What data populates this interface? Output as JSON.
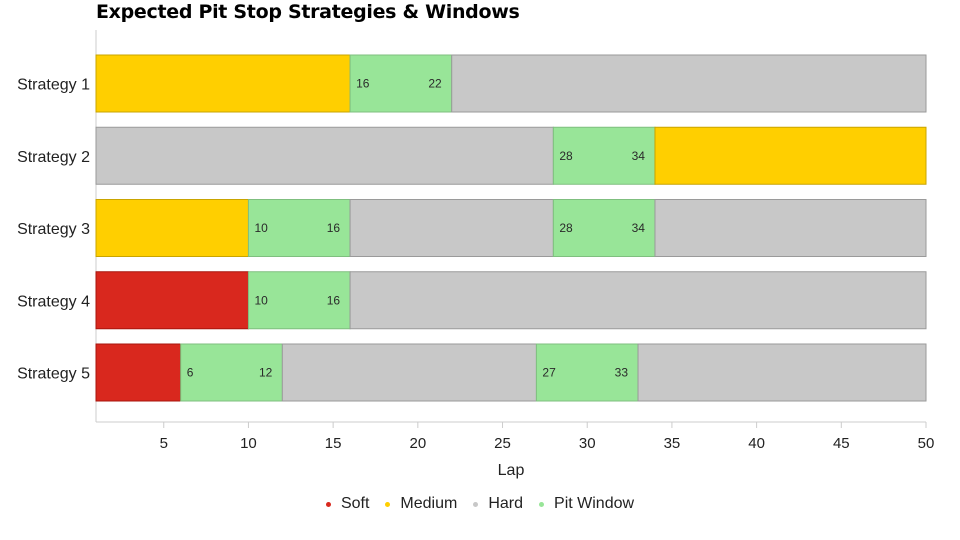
{
  "chart_data": {
    "type": "bar",
    "orientation": "horizontal",
    "stacked": true,
    "title": "Expected Pit Stop Strategies & Windows",
    "xlabel": "Lap",
    "ylabel": "",
    "xlim": [
      1,
      50
    ],
    "xticks": [
      5,
      10,
      15,
      20,
      25,
      30,
      35,
      40,
      45,
      50
    ],
    "grid": false,
    "legend_position": "bottom",
    "categories": [
      "Strategy 1",
      "Strategy 2",
      "Strategy 3",
      "Strategy 4",
      "Strategy 5"
    ],
    "compounds": {
      "soft": {
        "name": "Soft",
        "color": "#d9281e"
      },
      "medium": {
        "name": "Medium",
        "color": "#ffcf00"
      },
      "hard": {
        "name": "Hard",
        "color": "#c8c8c8"
      },
      "window": {
        "name": "Pit Window",
        "color": "#98e598"
      }
    },
    "strategies": [
      {
        "name": "Strategy 1",
        "segments": [
          {
            "compound": "medium",
            "start": 1,
            "end": 16
          },
          {
            "compound": "window",
            "start": 16,
            "end": 22
          },
          {
            "compound": "hard",
            "start": 22,
            "end": 50
          }
        ]
      },
      {
        "name": "Strategy 2",
        "segments": [
          {
            "compound": "hard",
            "start": 1,
            "end": 28
          },
          {
            "compound": "window",
            "start": 28,
            "end": 34
          },
          {
            "compound": "medium",
            "start": 34,
            "end": 50
          }
        ]
      },
      {
        "name": "Strategy 3",
        "segments": [
          {
            "compound": "medium",
            "start": 1,
            "end": 10
          },
          {
            "compound": "window",
            "start": 10,
            "end": 16
          },
          {
            "compound": "hard",
            "start": 16,
            "end": 28
          },
          {
            "compound": "window",
            "start": 28,
            "end": 34
          },
          {
            "compound": "hard",
            "start": 34,
            "end": 50
          }
        ]
      },
      {
        "name": "Strategy 4",
        "segments": [
          {
            "compound": "soft",
            "start": 1,
            "end": 10
          },
          {
            "compound": "window",
            "start": 10,
            "end": 16
          },
          {
            "compound": "hard",
            "start": 16,
            "end": 50
          }
        ]
      },
      {
        "name": "Strategy 5",
        "segments": [
          {
            "compound": "soft",
            "start": 1,
            "end": 6
          },
          {
            "compound": "window",
            "start": 6,
            "end": 12
          },
          {
            "compound": "hard",
            "start": 12,
            "end": 27
          },
          {
            "compound": "window",
            "start": 27,
            "end": 33
          },
          {
            "compound": "hard",
            "start": 33,
            "end": 50
          }
        ]
      }
    ],
    "legend": [
      "Soft",
      "Medium",
      "Hard",
      "Pit Window"
    ]
  }
}
